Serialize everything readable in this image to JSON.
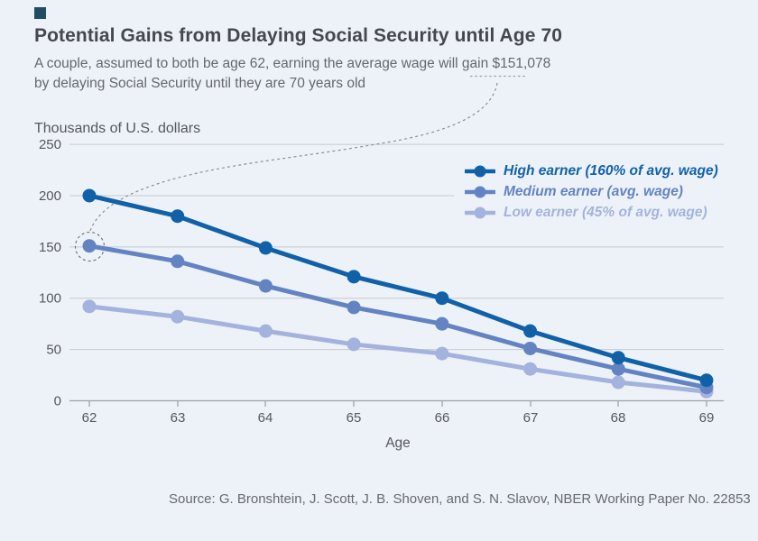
{
  "page": {
    "title": "Potential Gains from Delaying Social Security until Age 70",
    "subtitle_line1": "A couple, assumed to both be age 62, earning the average wage will gain $151,078",
    "subtitle_line2": "by delaying Social Security until they are 70 years old",
    "source": "Source: G. Bronshtein, J. Scott, J. B. Shoven, and S. N. Slavov, NBER Working Paper No. 22853"
  },
  "chart_data": {
    "type": "line",
    "title": "Potential Gains from Delaying Social Security until Age 70",
    "unit_label": "Thousands of U.S. dollars",
    "xlabel": "Age",
    "x": [
      62,
      63,
      64,
      65,
      66,
      67,
      68,
      69
    ],
    "yticks": [
      250,
      200,
      150,
      100,
      50,
      0
    ],
    "ylim": [
      0,
      250
    ],
    "grid": "horizontal",
    "legend_position": "top-right",
    "series": [
      {
        "name": "High earner (160% of avg. wage)",
        "color": "#1161a9",
        "values": [
          200,
          180,
          149,
          121,
          100,
          68,
          42,
          20
        ]
      },
      {
        "name": "Medium earner (avg. wage)",
        "color": "#6383c3",
        "values": [
          151,
          136,
          112,
          91,
          75,
          51,
          31,
          13
        ]
      },
      {
        "name": "Low earner (45% of avg. wage)",
        "color": "#a4b3dd",
        "values": [
          92,
          82,
          68,
          55,
          46,
          31,
          18,
          9
        ]
      }
    ],
    "annotation": {
      "text": "$151,078",
      "target_series": "Medium earner (avg. wage)",
      "target_x": 62,
      "target_value": 151
    },
    "colors": {
      "background": "#edf2f8",
      "gridline": "#c6cacd",
      "axis": "#9aa0a5",
      "annotation": "#8b9095",
      "title": "#45484c",
      "subtitle": "#64686d"
    }
  }
}
